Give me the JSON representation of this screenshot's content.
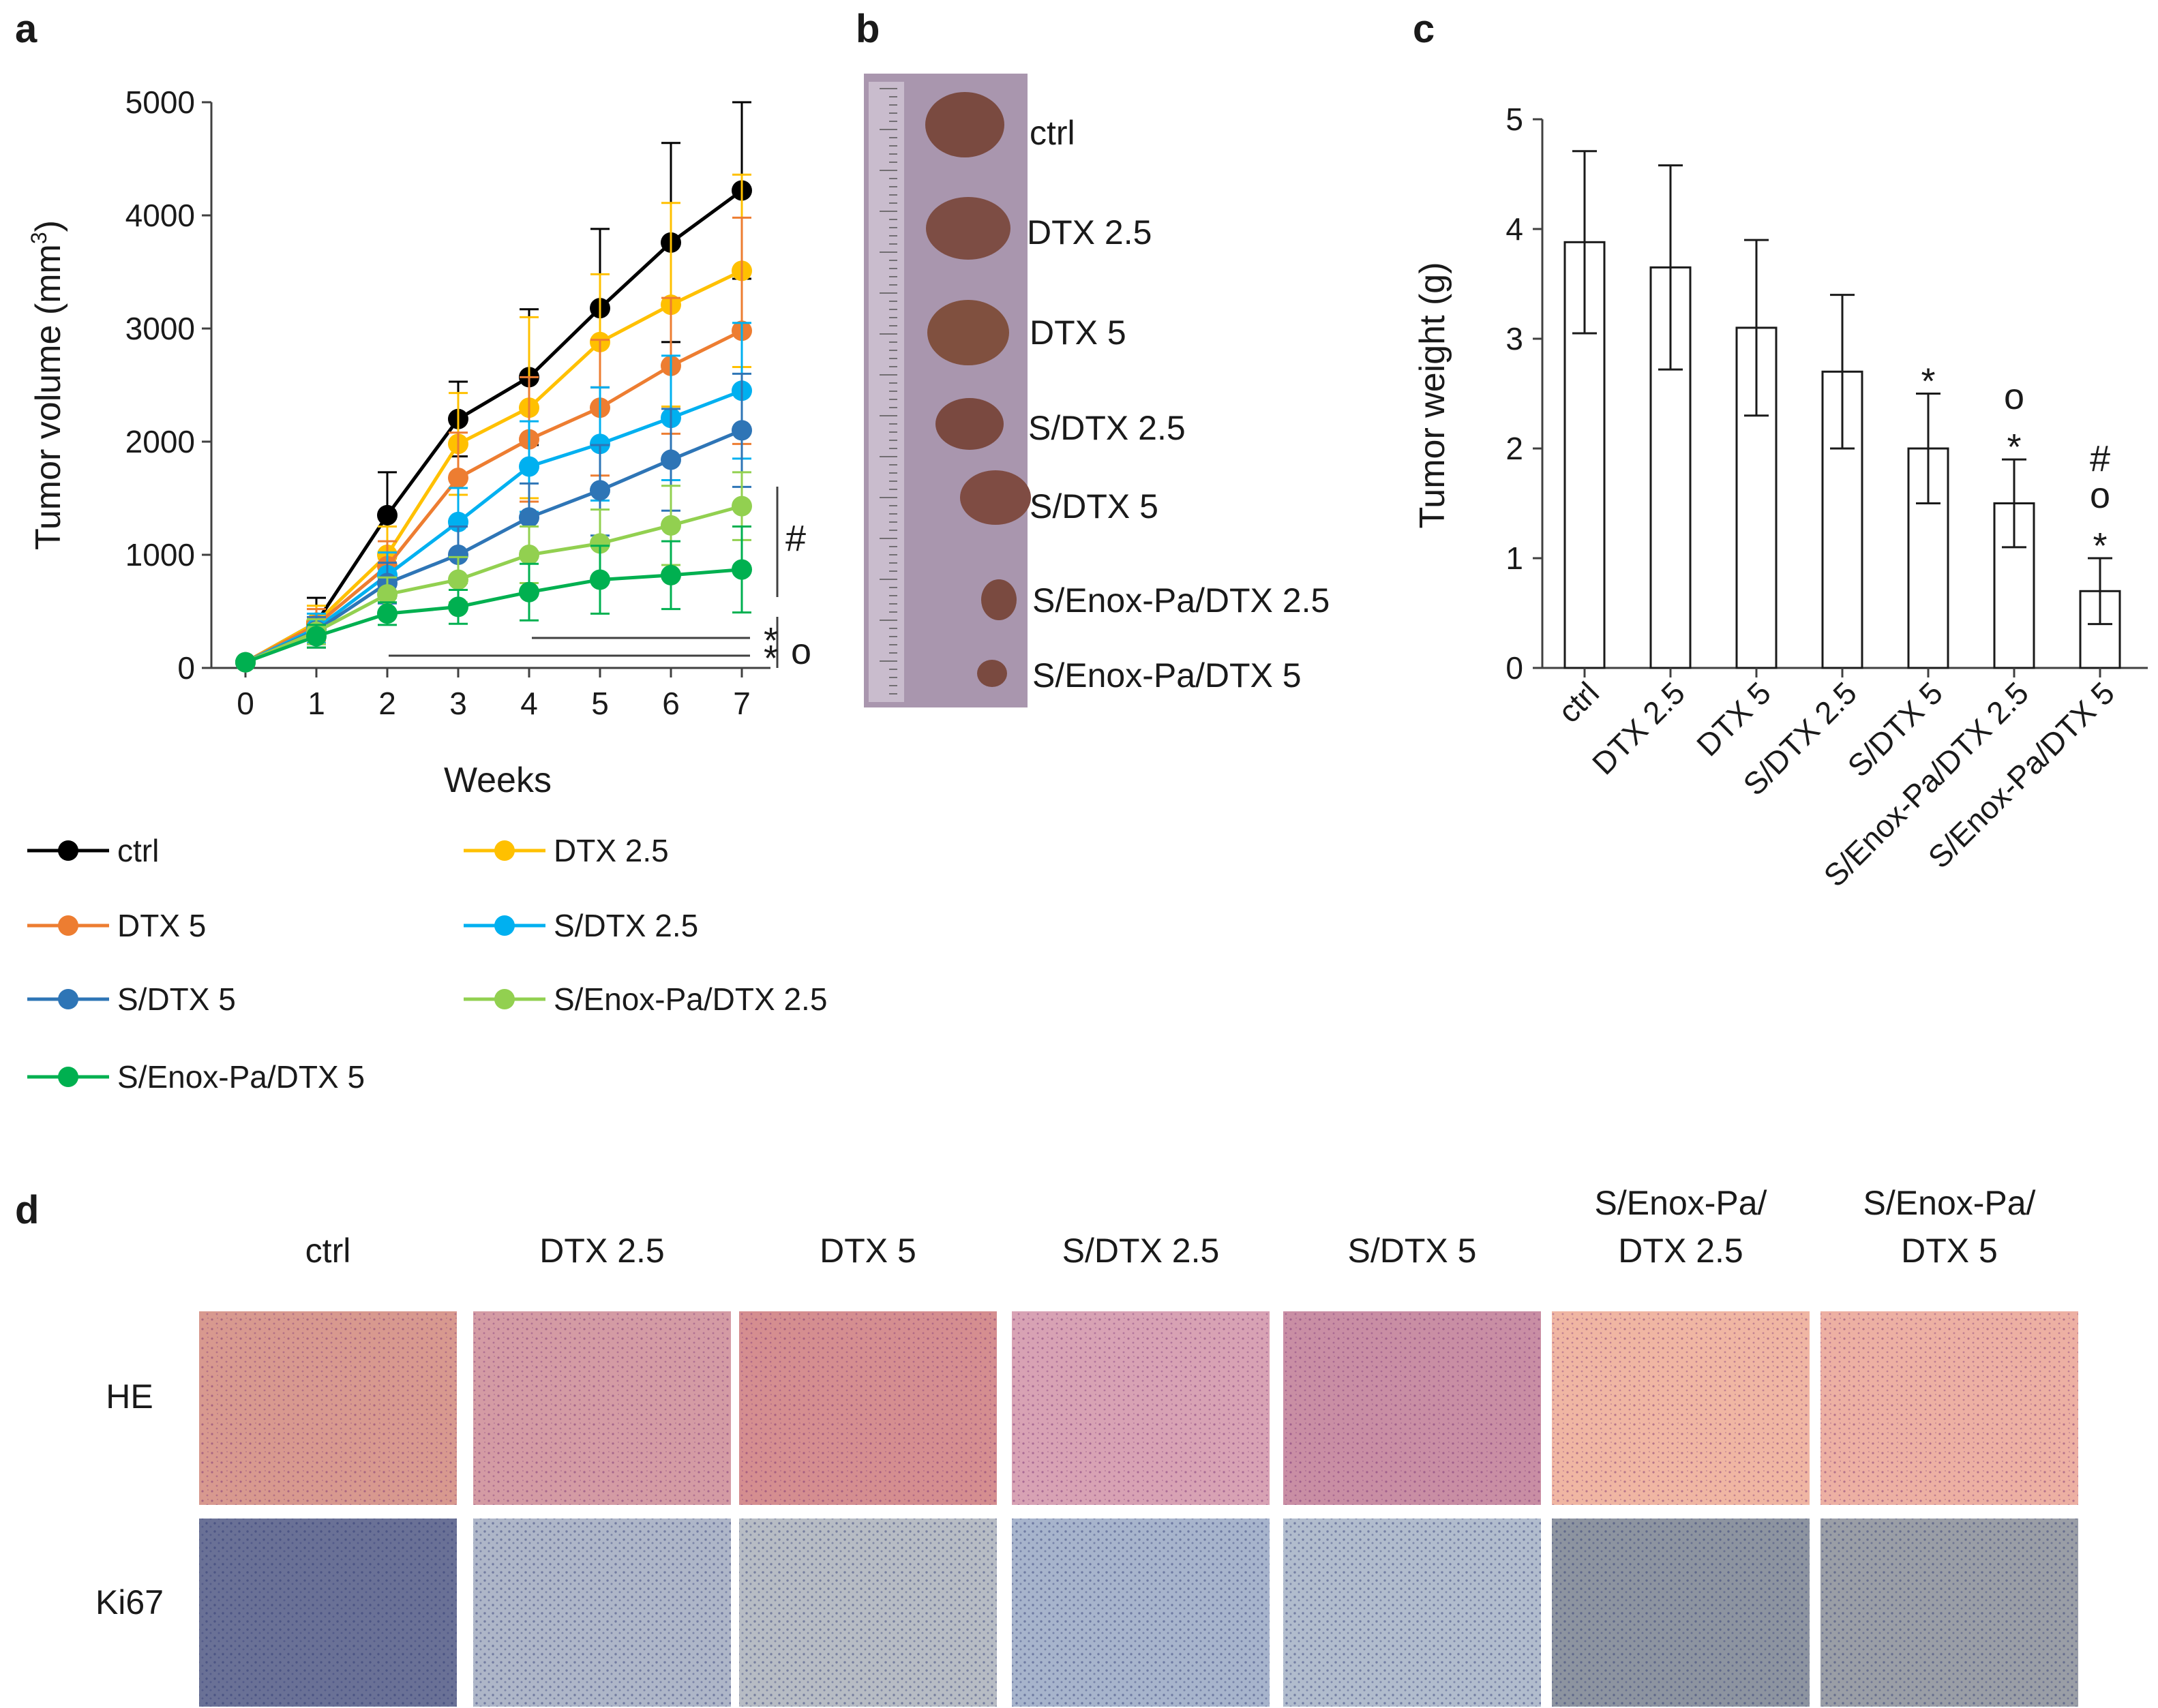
{
  "chart_data": [
    {
      "type": "line",
      "panel": "a",
      "xlabel": "Weeks",
      "ylabel": "Tumor volume (mm³)",
      "ylim": [
        0,
        5000
      ],
      "x": [
        0,
        1,
        2,
        3,
        4,
        5,
        6,
        7
      ],
      "yticks": [
        "0",
        "1000",
        "2000",
        "3000",
        "4000",
        "5000"
      ],
      "xticks": [
        "0",
        "1",
        "2",
        "3",
        "4",
        "5",
        "6",
        "7"
      ],
      "series": [
        {
          "name": "ctrl",
          "color": "#000000",
          "values": [
            50,
            400,
            1350,
            2200,
            2570,
            3180,
            3760,
            4220
          ],
          "errors": [
            0,
            220,
            380,
            330,
            600,
            700,
            880,
            780
          ]
        },
        {
          "name": "DTX 2.5",
          "color": "#FFC000",
          "values": [
            50,
            400,
            1000,
            1980,
            2300,
            2880,
            3210,
            3510
          ],
          "errors": [
            0,
            150,
            250,
            450,
            800,
            600,
            900,
            850
          ]
        },
        {
          "name": "DTX 5",
          "color": "#ED7D31",
          "values": [
            50,
            380,
            900,
            1680,
            2020,
            2300,
            2670,
            2980
          ],
          "errors": [
            0,
            140,
            220,
            400,
            550,
            600,
            600,
            1000
          ]
        },
        {
          "name": "S/DTX 2.5",
          "color": "#00B0F0",
          "values": [
            50,
            350,
            820,
            1290,
            1780,
            1980,
            2210,
            2450
          ],
          "errors": [
            0,
            130,
            200,
            300,
            400,
            500,
            550,
            600
          ]
        },
        {
          "name": "S/DTX 5",
          "color": "#2E75B6",
          "values": [
            50,
            330,
            750,
            1000,
            1330,
            1570,
            1840,
            2100
          ],
          "errors": [
            0,
            120,
            180,
            250,
            300,
            400,
            450,
            500
          ]
        },
        {
          "name": "S/Enox-Pa/DTX 2.5",
          "color": "#92D050",
          "values": [
            50,
            320,
            650,
            780,
            1000,
            1100,
            1260,
            1430
          ],
          "errors": [
            0,
            110,
            150,
            200,
            250,
            300,
            350,
            300
          ]
        },
        {
          "name": "S/Enox-Pa/DTX 5",
          "color": "#00B050",
          "values": [
            50,
            280,
            480,
            540,
            670,
            780,
            820,
            870
          ],
          "errors": [
            0,
            100,
            100,
            150,
            250,
            300,
            300,
            380
          ]
        }
      ],
      "significance": [
        {
          "symbol": "#",
          "from_x": 7,
          "y_range": [
            870,
            1600
          ]
        },
        {
          "symbol": "*",
          "from_x": 4,
          "to_x": 7
        },
        {
          "symbol": "*",
          "from_x": 2,
          "to_x": 7
        },
        {
          "symbol": "o",
          "from_x": 2,
          "to_x": 7
        }
      ]
    },
    {
      "type": "bar",
      "panel": "c",
      "ylabel": "Tumor weight (g)",
      "ylim": [
        0,
        5
      ],
      "yticks": [
        "0",
        "1",
        "2",
        "3",
        "4",
        "5"
      ],
      "categories": [
        "ctrl",
        "DTX 2.5",
        "DTX 5",
        "S/DTX 2.5",
        "S/DTX 5",
        "S/Enox-Pa/DTX 2.5",
        "S/Enox-Pa/DTX 5"
      ],
      "values": [
        3.88,
        3.65,
        3.1,
        2.7,
        2.0,
        1.5,
        0.7
      ],
      "errors": [
        0.83,
        0.93,
        0.8,
        0.7,
        0.5,
        0.4,
        0.3
      ],
      "annotations": [
        {
          "category": "S/DTX 5",
          "symbols": [
            "*"
          ]
        },
        {
          "category": "S/Enox-Pa/DTX 2.5",
          "symbols": [
            "o",
            "*"
          ]
        },
        {
          "category": "S/Enox-Pa/DTX 5",
          "symbols": [
            "#",
            "o",
            "*"
          ]
        }
      ]
    }
  ],
  "panels": {
    "a": "a",
    "b": "b",
    "c": "c",
    "d": "d"
  },
  "photo_b": {
    "labels": [
      "ctrl",
      "DTX 2.5",
      "DTX 5",
      "S/DTX 2.5",
      "S/DTX 5",
      "S/Enox-Pa/DTX 2.5",
      "S/Enox-Pa/DTX 5"
    ]
  },
  "histology_d": {
    "columns": [
      {
        "line1": "ctrl",
        "line2": ""
      },
      {
        "line1": "DTX 2.5",
        "line2": ""
      },
      {
        "line1": "DTX 5",
        "line2": ""
      },
      {
        "line1": "S/DTX 2.5",
        "line2": ""
      },
      {
        "line1": "S/DTX 5",
        "line2": ""
      },
      {
        "line1": "S/Enox-Pa/",
        "line2": "DTX 2.5"
      },
      {
        "line1": "S/Enox-Pa/",
        "line2": "DTX 5"
      }
    ],
    "rows": [
      "HE",
      "Ki67"
    ]
  },
  "legend": [
    {
      "name": "ctrl",
      "color": "#000000"
    },
    {
      "name": "DTX 2.5",
      "color": "#FFC000"
    },
    {
      "name": "DTX 5",
      "color": "#ED7D31"
    },
    {
      "name": "S/DTX 2.5",
      "color": "#00B0F0"
    },
    {
      "name": "S/DTX 5",
      "color": "#2E75B6"
    },
    {
      "name": "S/Enox-Pa/DTX 2.5",
      "color": "#92D050"
    },
    {
      "name": "S/Enox-Pa/DTX 5",
      "color": "#00B050"
    }
  ]
}
